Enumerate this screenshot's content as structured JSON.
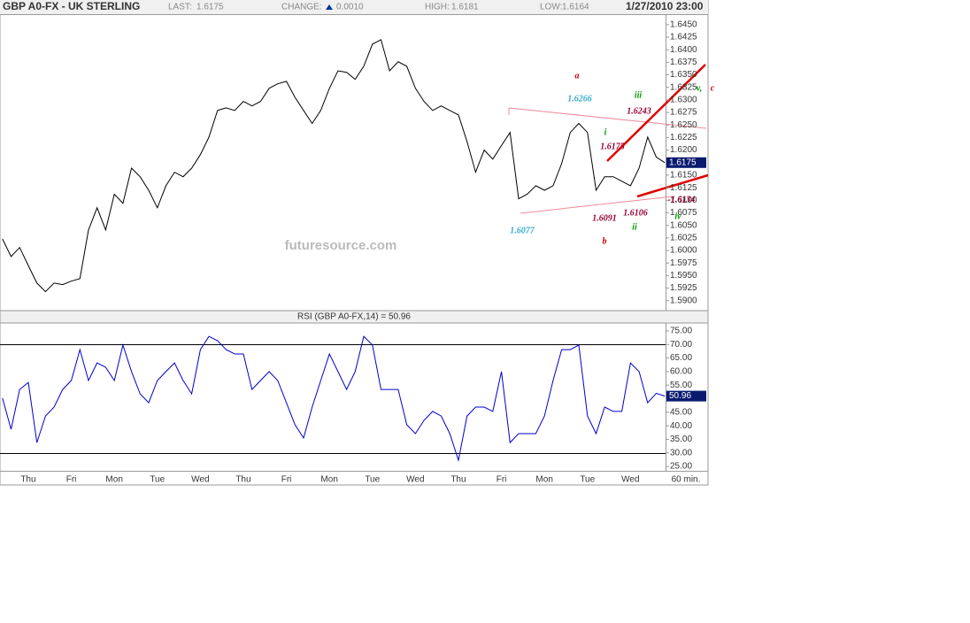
{
  "header": {
    "symbol": "GBP A0-FX - UK STERLING",
    "last_label": "LAST:",
    "last": "1.6175",
    "change_label": "CHANGE:",
    "change": "0.0010",
    "high_label": "HIGH:",
    "high": "1.6181",
    "low_label": "LOW:",
    "low": "1.6164",
    "datetime": "1/27/2010 23:00"
  },
  "watermark": "futuresource.com",
  "chart_data": [
    {
      "type": "line",
      "series": [
        {
          "name": "GBP A0-FX",
          "color": "#000000",
          "values": [
            1.6023,
            1.5988,
            1.6006,
            1.597,
            1.5935,
            1.5918,
            1.5935,
            1.5932,
            1.5939,
            1.5944,
            1.6041,
            1.6085,
            1.6041,
            1.6112,
            1.6094,
            1.6164,
            1.6147,
            1.612,
            1.6085,
            1.6129,
            1.6156,
            1.6147,
            1.6164,
            1.6191,
            1.6226,
            1.6279,
            1.6284,
            1.6279,
            1.6297,
            1.6288,
            1.6297,
            1.6323,
            1.6332,
            1.6337,
            1.6305,
            1.6279,
            1.6253,
            1.6279,
            1.6323,
            1.6358,
            1.6355,
            1.6341,
            1.6367,
            1.6411,
            1.642,
            1.6358,
            1.6376,
            1.6367,
            1.6323,
            1.6297,
            1.6279,
            1.6288,
            1.6279,
            1.627,
            1.6217,
            1.6156,
            1.62,
            1.6182,
            1.6209,
            1.6235,
            1.6103,
            1.6112,
            1.6129,
            1.612,
            1.6129,
            1.6173,
            1.6235,
            1.6253,
            1.6235,
            1.612,
            1.6147,
            1.6147,
            1.6138,
            1.6129,
            1.6164,
            1.6226,
            1.6186,
            1.6175
          ]
        }
      ],
      "ylim": [
        1.5882,
        1.6469
      ],
      "yticks": [
        {
          "value": 1.59,
          "label": "1.5900"
        },
        {
          "value": 1.5925,
          "label": "1.5925"
        },
        {
          "value": 1.595,
          "label": "1.5950"
        },
        {
          "value": 1.5975,
          "label": "1.5975"
        },
        {
          "value": 1.6,
          "label": "1.6000"
        },
        {
          "value": 1.6025,
          "label": "1.6025"
        },
        {
          "value": 1.605,
          "label": "1.6050"
        },
        {
          "value": 1.6075,
          "label": "1.6075"
        },
        {
          "value": 1.61,
          "label": "1.6100"
        },
        {
          "value": 1.6125,
          "label": "1.6125"
        },
        {
          "value": 1.615,
          "label": "1.6150"
        },
        {
          "value": 1.6175,
          "label": "1.6175"
        },
        {
          "value": 1.62,
          "label": "1.6200"
        },
        {
          "value": 1.6225,
          "label": "1.6225"
        },
        {
          "value": 1.625,
          "label": "1.6250"
        },
        {
          "value": 1.6275,
          "label": "1.6275"
        },
        {
          "value": 1.63,
          "label": "1.6300"
        },
        {
          "value": 1.6325,
          "label": "1.6325"
        },
        {
          "value": 1.635,
          "label": "1.6350"
        },
        {
          "value": 1.6375,
          "label": "1.6375"
        },
        {
          "value": 1.64,
          "label": "1.6400"
        },
        {
          "value": 1.6425,
          "label": "1.6425"
        },
        {
          "value": 1.645,
          "label": "1.6450"
        }
      ],
      "annotations": [
        {
          "text": "a",
          "color": "#cc0000"
        },
        {
          "text": "1.6266",
          "color": "#33aacc"
        },
        {
          "text": "iii",
          "color": "#009900"
        },
        {
          "text": "v,",
          "color": "#009900"
        },
        {
          "text": "c",
          "color": "#cc0000"
        },
        {
          "text": "1.6243",
          "color": "#990033"
        },
        {
          "text": "i",
          "color": "#009900"
        },
        {
          "text": "1.6175",
          "color": "#990033"
        },
        {
          "text": "1.6091",
          "color": "#990033"
        },
        {
          "text": "1.6106",
          "color": "#990033"
        },
        {
          "text": "-1.6134",
          "color": "#990033"
        },
        {
          "text": "1.6077",
          "color": "#33aacc"
        },
        {
          "text": "b",
          "color": "#cc0000"
        },
        {
          "text": "ii",
          "color": "#009900"
        },
        {
          "text": "iv",
          "color": "#009900"
        }
      ]
    },
    {
      "type": "line",
      "title": "RSI (GBP A0-FX,14) = 50.96",
      "categories": [
        null,
        null,
        null,
        "Thu",
        null,
        null,
        null,
        null,
        "Fri",
        null,
        null,
        null,
        null,
        "Mon",
        null,
        null,
        null,
        null,
        "Tue",
        null,
        null,
        null,
        null,
        "Wed",
        null,
        null,
        null,
        null,
        "Thu",
        null,
        null,
        null,
        null,
        "Fri",
        null,
        null,
        null,
        null,
        "Mon",
        null,
        null,
        null,
        null,
        "Tue",
        null,
        null,
        null,
        null,
        "Wed",
        null,
        null,
        null,
        null,
        "Thu",
        null,
        null,
        null,
        null,
        "Fri",
        null,
        null,
        null,
        null,
        "Mon",
        null,
        null,
        null,
        null,
        "Tue",
        null,
        null,
        null,
        null,
        "Wed",
        null,
        null,
        null,
        null
      ],
      "xlabel": "60 min.",
      "series": [
        {
          "name": "RSI",
          "color": "#0000cc",
          "values": [
            50.2,
            38.7,
            53.4,
            56.0,
            33.8,
            43.6,
            46.9,
            53.4,
            56.7,
            68.1,
            56.7,
            63.2,
            61.6,
            56.7,
            69.8,
            60.0,
            51.8,
            48.5,
            56.7,
            60.0,
            63.2,
            56.7,
            51.8,
            68.1,
            73.0,
            71.4,
            68.1,
            66.5,
            66.5,
            53.4,
            56.7,
            60.0,
            56.7,
            48.5,
            40.4,
            35.5,
            46.9,
            56.7,
            66.5,
            60.0,
            53.4,
            60.0,
            73.0,
            69.8,
            53.4,
            53.4,
            53.4,
            40.4,
            37.1,
            42.0,
            45.3,
            43.6,
            37.1,
            27.3,
            43.6,
            46.9,
            46.9,
            45.3,
            60.0,
            33.8,
            37.1,
            37.1,
            37.1,
            43.6,
            56.7,
            68.1,
            68.1,
            69.8,
            43.6,
            37.1,
            46.9,
            45.3,
            45.3,
            63.2,
            60.0,
            48.5,
            52.0,
            50.96
          ]
        }
      ],
      "ylim": [
        23.4,
        77.6
      ],
      "yticks": [
        {
          "value": 25,
          "label": "25.00"
        },
        {
          "value": 30,
          "label": "30.00"
        },
        {
          "value": 35,
          "label": "35.00"
        },
        {
          "value": 40,
          "label": "40.00"
        },
        {
          "value": 45,
          "label": "45.00"
        },
        {
          "value": 50,
          "label": "50.00"
        },
        {
          "value": 55,
          "label": "55.00"
        },
        {
          "value": 60,
          "label": "60.00"
        },
        {
          "value": 65,
          "label": "65.00"
        },
        {
          "value": 70,
          "label": "70.00"
        },
        {
          "value": 75,
          "label": "75.00"
        }
      ],
      "reference_lines": [
        30,
        70
      ]
    }
  ]
}
